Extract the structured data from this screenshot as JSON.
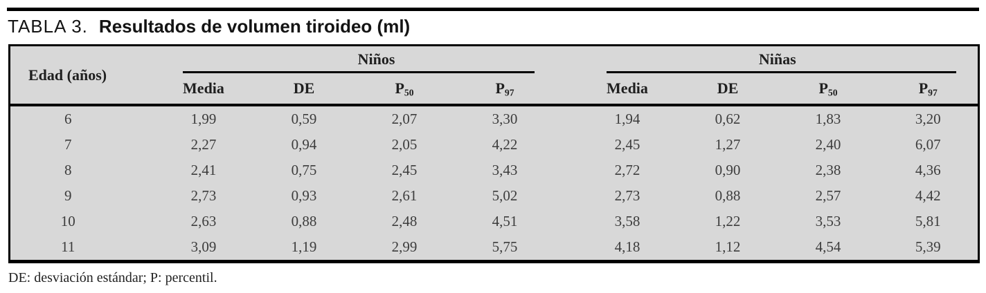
{
  "title": {
    "label": "TABLA 3.",
    "text": "Resultados de volumen tiroideo (ml)"
  },
  "table": {
    "corner_header": "Edad (años)",
    "groups": [
      {
        "label": "Niños"
      },
      {
        "label": "Niñas"
      }
    ],
    "subheaders": [
      {
        "base": "Media",
        "sub": ""
      },
      {
        "base": "DE",
        "sub": ""
      },
      {
        "base": "P",
        "sub": "50"
      },
      {
        "base": "P",
        "sub": "97"
      },
      {
        "base": "Media",
        "sub": ""
      },
      {
        "base": "DE",
        "sub": ""
      },
      {
        "base": "P",
        "sub": "50"
      },
      {
        "base": "P",
        "sub": "97"
      }
    ],
    "rows": [
      {
        "edad": "6",
        "values": [
          "1,99",
          "0,59",
          "2,07",
          "3,30",
          "1,94",
          "0,62",
          "1,83",
          "3,20"
        ]
      },
      {
        "edad": "7",
        "values": [
          "2,27",
          "0,94",
          "2,05",
          "4,22",
          "2,45",
          "1,27",
          "2,40",
          "6,07"
        ]
      },
      {
        "edad": "8",
        "values": [
          "2,41",
          "0,75",
          "2,45",
          "3,43",
          "2,72",
          "0,90",
          "2,38",
          "4,36"
        ]
      },
      {
        "edad": "9",
        "values": [
          "2,73",
          "0,93",
          "2,61",
          "5,02",
          "2,73",
          "0,88",
          "2,57",
          "4,42"
        ]
      },
      {
        "edad": "10",
        "values": [
          "2,63",
          "0,88",
          "2,48",
          "4,51",
          "3,58",
          "1,22",
          "3,53",
          "5,81"
        ]
      },
      {
        "edad": "11",
        "values": [
          "3,09",
          "1,19",
          "2,99",
          "5,75",
          "4,18",
          "1,12",
          "4,54",
          "5,39"
        ]
      }
    ]
  },
  "footnote": "DE: desviación estándar; P: percentil.",
  "colors": {
    "page_bg": "#ffffff",
    "table_bg": "#d8d8d8",
    "rule": "#000000",
    "header_text": "#1f1f1f",
    "data_text": "#3c3c3c"
  }
}
